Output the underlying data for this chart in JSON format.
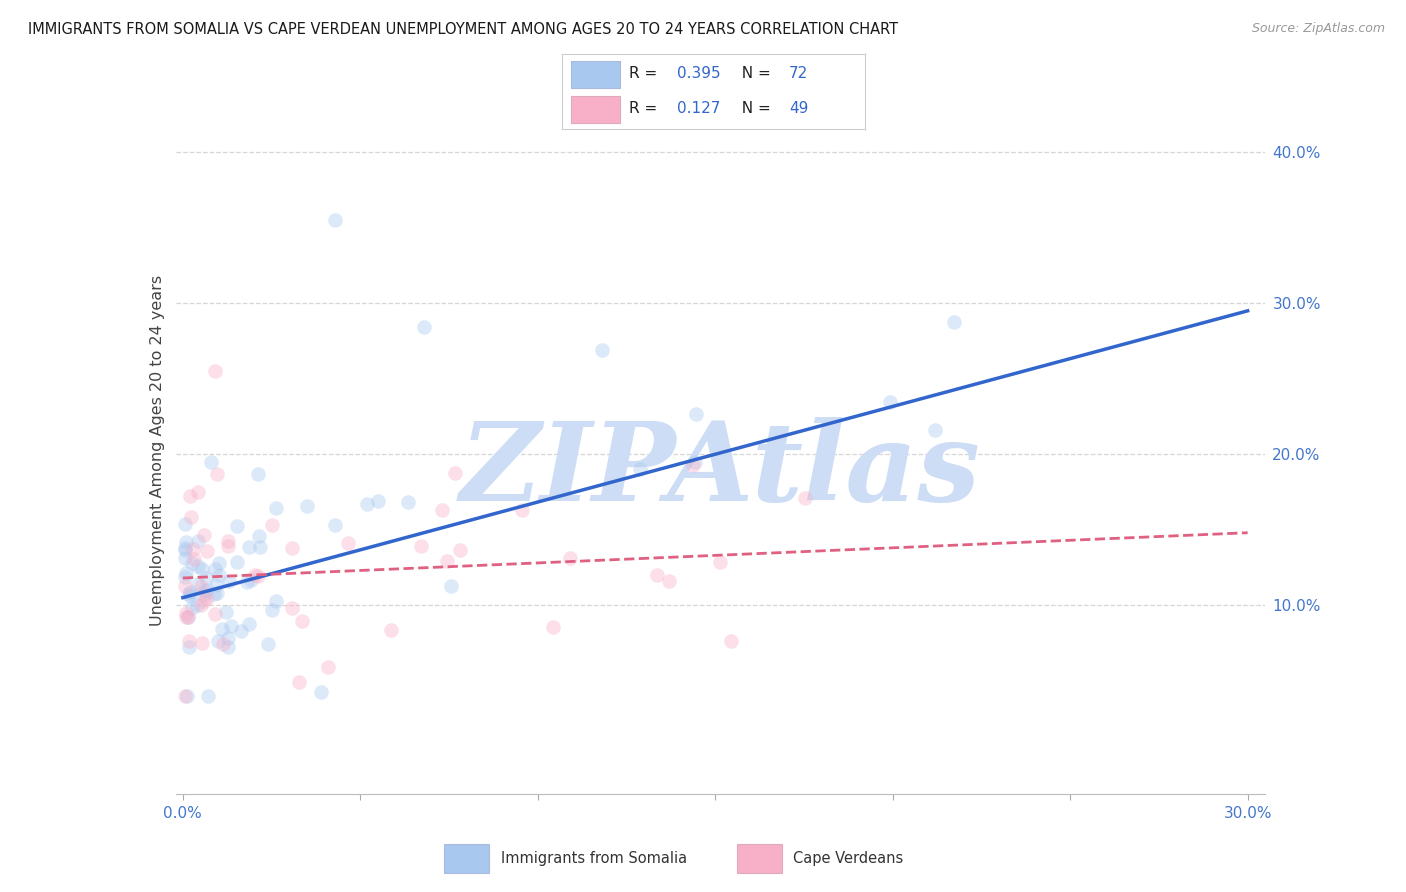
{
  "title": "IMMIGRANTS FROM SOMALIA VS CAPE VERDEAN UNEMPLOYMENT AMONG AGES 20 TO 24 YEARS CORRELATION CHART",
  "source": "Source: ZipAtlas.com",
  "ylabel": "Unemployment Among Ages 20 to 24 years",
  "xlim": [
    -0.002,
    0.305
  ],
  "ylim": [
    -0.025,
    0.43
  ],
  "xtick_vals": [
    0.0,
    0.05,
    0.1,
    0.15,
    0.2,
    0.25,
    0.3
  ],
  "xtick_labels": [
    "0.0%",
    "",
    "",
    "",
    "",
    "",
    "30.0%"
  ],
  "yticks_right": [
    0.1,
    0.2,
    0.3,
    0.4
  ],
  "ytick_labels_right": [
    "10.0%",
    "20.0%",
    "30.0%",
    "40.0%"
  ],
  "somalia_color": "#a8c8f0",
  "cv_color": "#f8b0c8",
  "somalia_line_color": "#3366cc",
  "cv_line_color": "#e06080",
  "somalia_R": "0.395",
  "somalia_N": "72",
  "cv_R": "0.127",
  "cv_N": "49",
  "somalia_trend_x": [
    0.0,
    0.3
  ],
  "somalia_trend_y": [
    0.105,
    0.295
  ],
  "cv_trend_x": [
    0.0,
    0.3
  ],
  "cv_trend_y": [
    0.118,
    0.148
  ],
  "watermark": "ZIPAtlas",
  "watermark_color": "#ccddf5",
  "axis_label_color": "#4477cc",
  "title_color": "#1a1a1a",
  "background_color": "#ffffff",
  "grid_color": "#cccccc",
  "dot_size": 110,
  "dot_alpha": 0.4,
  "legend_box_color": "#f8f8ff",
  "legend_border_color": "#cccccc",
  "label_R_color": "#222222",
  "label_N_color": "#222222",
  "value_color": "#3366cc"
}
